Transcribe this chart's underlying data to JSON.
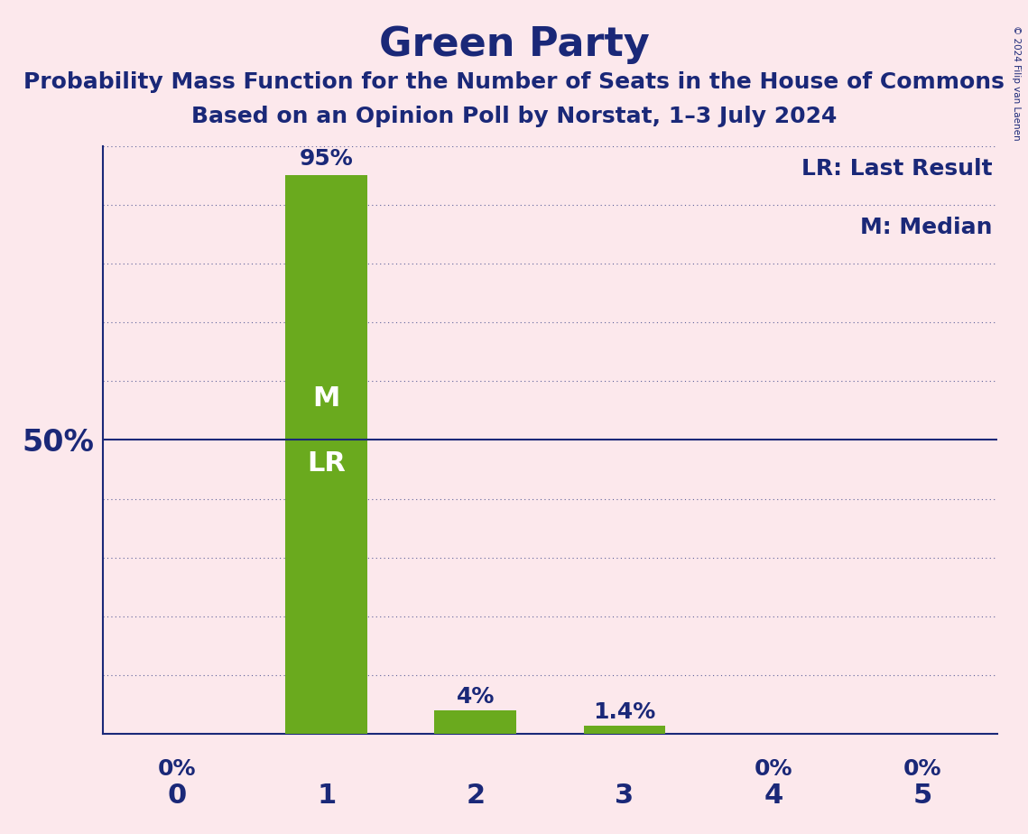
{
  "title": "Green Party",
  "subtitle1": "Probability Mass Function for the Number of Seats in the House of Commons",
  "subtitle2": "Based on an Opinion Poll by Norstat, 1–3 July 2024",
  "copyright": "© 2024 Filip van Laenen",
  "legend_lr": "LR: Last Result",
  "legend_m": "M: Median",
  "categories": [
    0,
    1,
    2,
    3,
    4,
    5
  ],
  "values": [
    0.0,
    95.0,
    4.0,
    1.4,
    0.0,
    0.0
  ],
  "bar_labels": [
    "0%",
    "95%",
    "4%",
    "1.4%",
    "0%",
    "0%"
  ],
  "bar_color": "#6aaa1e",
  "bar_label_color": "#1a2878",
  "title_color": "#1a2878",
  "subtitle_color": "#1a2878",
  "axis_color": "#1a2878",
  "tick_color": "#1a2878",
  "background_color": "#fce8ec",
  "fifty_line_color": "#1a2878",
  "fifty_line_label": "50%",
  "grid_color": "#1a2878",
  "median_seat": 1,
  "last_result_seat": 1,
  "title_fontsize": 32,
  "subtitle_fontsize": 18,
  "bar_label_fontsize": 18,
  "inside_label_fontsize": 22,
  "legend_fontsize": 18,
  "axis_tick_fontsize": 22,
  "fifty_label_fontsize": 24
}
